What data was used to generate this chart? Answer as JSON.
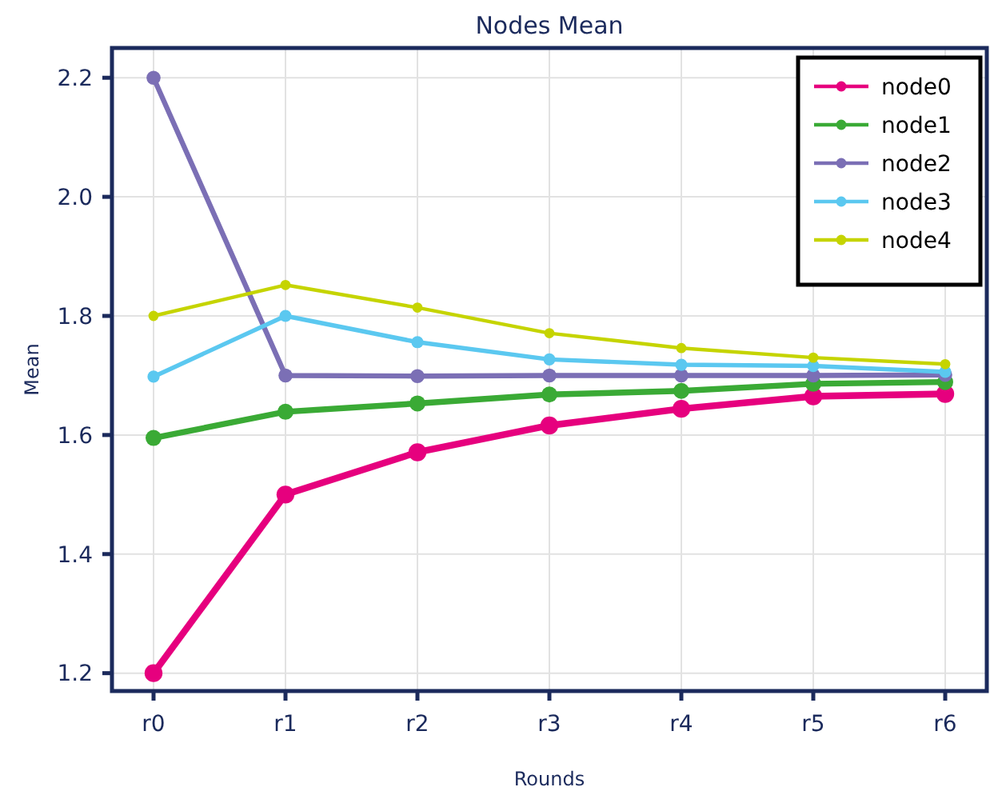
{
  "chart_data": {
    "type": "line",
    "title": "Nodes Mean",
    "xlabel": "Rounds",
    "ylabel": "Mean",
    "categories": [
      "r0",
      "r1",
      "r2",
      "r3",
      "r4",
      "r5",
      "r6"
    ],
    "ylim": [
      1.17,
      2.25
    ],
    "yticks": [
      {
        "value": 1.2,
        "label": "1.2"
      },
      {
        "value": 1.4,
        "label": "1.4"
      },
      {
        "value": 1.6,
        "label": "1.6"
      },
      {
        "value": 1.8,
        "label": "1.8"
      },
      {
        "value": 2.0,
        "label": "2.0"
      },
      {
        "value": 2.2,
        "label": "2.2"
      }
    ],
    "grid": true,
    "legend": "top right",
    "marker": "circle",
    "line_style": "solid",
    "series": [
      {
        "name": "node0",
        "color": "#e6007e",
        "values": [
          1.2,
          1.5,
          1.571,
          1.616,
          1.644,
          1.665,
          1.669
        ]
      },
      {
        "name": "node1",
        "color": "#3aaa35",
        "values": [
          1.595,
          1.639,
          1.653,
          1.668,
          1.674,
          1.686,
          1.689
        ]
      },
      {
        "name": "node2",
        "color": "#7b6fb5",
        "values": [
          2.2,
          1.7,
          1.699,
          1.7,
          1.7,
          1.7,
          1.701
        ]
      },
      {
        "name": "node3",
        "color": "#5bc8f0",
        "values": [
          1.698,
          1.8,
          1.756,
          1.727,
          1.718,
          1.716,
          1.706
        ]
      },
      {
        "name": "node4",
        "color": "#c5d400",
        "values": [
          1.8,
          1.852,
          1.814,
          1.771,
          1.746,
          1.73,
          1.719
        ]
      }
    ]
  }
}
